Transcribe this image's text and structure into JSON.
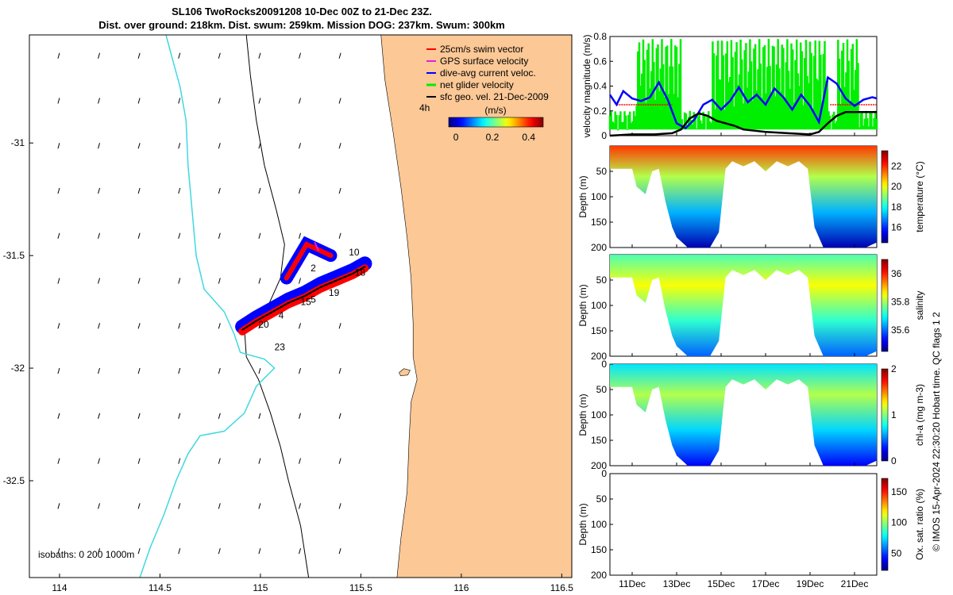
{
  "title": {
    "line1": "SL106 TwoRocks20091208 10-Dec 00Z to 21-Dec 23Z.",
    "line2": "Dist. over ground: 218km. Dist. swum: 259km. Mission DOG: 237km. Swum: 300km"
  },
  "colors": {
    "land": "#fbc896",
    "coast": "#000000",
    "isobath_200": "#000000",
    "isobath_1000": "#40d8e0",
    "swim": "#ff0000",
    "gps": "#e020e0",
    "current": "#0000ff",
    "net": "#00ee00",
    "geo": "#000000"
  },
  "chart_data": [
    {
      "type": "map",
      "xlim": [
        113.85,
        116.55
      ],
      "ylim": [
        -32.93,
        -30.52
      ],
      "xticks": [
        {
          "value": 114,
          "label": "114"
        },
        {
          "value": 114.5,
          "label": "114.5"
        },
        {
          "value": 115,
          "label": "115"
        },
        {
          "value": 115.5,
          "label": "115.5"
        },
        {
          "value": 116,
          "label": "116"
        },
        {
          "value": 116.5,
          "label": "116.5"
        }
      ],
      "yticks": [
        {
          "value": -31,
          "label": "-31"
        },
        {
          "value": -31.5,
          "label": "-31.5"
        },
        {
          "value": -32,
          "label": "-32"
        },
        {
          "value": -32.5,
          "label": "-32.5"
        }
      ],
      "legend": {
        "placement": "top-right",
        "entries": [
          "25cm/s swim vector",
          "GPS surface velocity",
          "dive-avg current veloc.",
          "net glider velocity",
          "sfc geo. vel. 21-Dec-2009"
        ],
        "time_label": "4h",
        "colorbar_label": "(m/s)",
        "colorbar_ticks": [
          "0",
          "0.2",
          "0.4"
        ],
        "colorbar_range": [
          -0.04,
          0.48
        ]
      },
      "isobath_label": "isobaths: 0   200  1000m",
      "track_day_labels": [
        {
          "text": "10",
          "lon": 115.44,
          "lat": -31.5
        },
        {
          "text": "2",
          "lon": 115.25,
          "lat": -31.57
        },
        {
          "text": "18",
          "lon": 115.47,
          "lat": -31.59
        },
        {
          "text": "19",
          "lon": 115.34,
          "lat": -31.68
        },
        {
          "text": "15",
          "lon": 115.2,
          "lat": -31.72
        },
        {
          "text": "5",
          "lon": 115.25,
          "lat": -31.71
        },
        {
          "text": "4",
          "lon": 115.09,
          "lat": -31.78
        },
        {
          "text": "20",
          "lon": 114.99,
          "lat": -31.82
        },
        {
          "text": "23",
          "lon": 115.07,
          "lat": -31.92
        }
      ],
      "track": [
        [
          114.91,
          -31.83
        ],
        [
          114.98,
          -31.79
        ],
        [
          115.06,
          -31.75
        ],
        [
          115.14,
          -31.71
        ],
        [
          115.22,
          -31.68
        ],
        [
          115.3,
          -31.64
        ],
        [
          115.38,
          -31.61
        ],
        [
          115.46,
          -31.58
        ],
        [
          115.52,
          -31.55
        ]
      ]
    },
    {
      "type": "line",
      "ylabel": "velocity magnitude (m/s)",
      "ylim": [
        0,
        0.8
      ],
      "yticks": [
        0,
        0.2,
        0.4,
        0.6,
        0.8
      ],
      "xlim": [
        10.0,
        22.0
      ],
      "series": [
        {
          "values_x": [
            10.0,
            10.3,
            10.6,
            11.0,
            11.4,
            11.8,
            12.2,
            12.6,
            13.0,
            13.4,
            13.8,
            14.2,
            14.6,
            15.0,
            15.4,
            15.8,
            16.2,
            16.6,
            17.0,
            17.4,
            17.8,
            18.2,
            18.6,
            19.0,
            19.4,
            19.8,
            20.2,
            20.6,
            21.0,
            21.4,
            21.8,
            22.0
          ],
          "values_y": [
            0.33,
            0.25,
            0.36,
            0.3,
            0.28,
            0.31,
            0.43,
            0.29,
            0.1,
            0.06,
            0.13,
            0.25,
            0.29,
            0.21,
            0.28,
            0.39,
            0.27,
            0.33,
            0.25,
            0.38,
            0.31,
            0.21,
            0.33,
            0.24,
            0.11,
            0.47,
            0.42,
            0.3,
            0.24,
            0.29,
            0.31,
            0.3
          ]
        },
        {
          "values_x": [
            10.0,
            11.0,
            12.0,
            12.8,
            13.2,
            13.6,
            14.0,
            14.4,
            14.8,
            15.2,
            15.6,
            16.0,
            17.0,
            18.0,
            19.0,
            19.4,
            19.8,
            20.2,
            20.6,
            21.0,
            21.5,
            22.0
          ],
          "values_y": [
            0.0,
            0.01,
            0.01,
            0.02,
            0.05,
            0.14,
            0.18,
            0.16,
            0.12,
            0.1,
            0.08,
            0.05,
            0.03,
            0.02,
            0.01,
            0.03,
            0.1,
            0.16,
            0.19,
            0.19,
            0.19,
            0.19
          ]
        }
      ],
      "ref_levels": [
        {
          "y": 0.25,
          "x_range": [
            10.3,
            12.8
          ]
        },
        {
          "y": 0.25,
          "x_range": [
            19.9,
            22.0
          ]
        }
      ]
    },
    {
      "type": "heatmap",
      "ylabel": "Depth (m)",
      "colorbar_label": "temperature (°C)",
      "ylim": [
        0,
        200
      ],
      "yticks": [
        50,
        100,
        150,
        200
      ],
      "colorbar_range": [
        14.5,
        23.5
      ],
      "colorbar_ticks": [
        16,
        18,
        20,
        22
      ]
    },
    {
      "type": "heatmap",
      "ylabel": "Depth (m)",
      "colorbar_label": "salinity",
      "ylim": [
        0,
        200
      ],
      "yticks": [
        50,
        100,
        150,
        200
      ],
      "colorbar_range": [
        35.45,
        36.1
      ],
      "colorbar_ticks": [
        35.6,
        35.8,
        36
      ]
    },
    {
      "type": "heatmap",
      "ylabel": "Depth (m)",
      "colorbar_label": "chl-a (mg m-3)",
      "ylim": [
        0,
        200
      ],
      "yticks": [
        0,
        50,
        100,
        150,
        200
      ],
      "colorbar_range": [
        0,
        2
      ],
      "colorbar_ticks": [
        0,
        1,
        2
      ]
    },
    {
      "type": "heatmap",
      "ylabel": "Depth (m)",
      "colorbar_label": "Ox. sat. ratio (%)",
      "ylim": [
        0,
        200
      ],
      "yticks": [
        0,
        50,
        100,
        150,
        200
      ],
      "colorbar_range": [
        22,
        172
      ],
      "colorbar_ticks": [
        50,
        100,
        150
      ],
      "xticks": [
        {
          "value": 11,
          "label": "11Dec"
        },
        {
          "value": 13,
          "label": "13Dec"
        },
        {
          "value": 15,
          "label": "15Dec"
        },
        {
          "value": 17,
          "label": "17Dec"
        },
        {
          "value": 19,
          "label": "19Dec"
        },
        {
          "value": 21,
          "label": "21Dec"
        }
      ],
      "xlim": [
        10.0,
        22.0
      ]
    }
  ],
  "section_profile": {
    "x": [
      10.0,
      10.5,
      11.0,
      11.2,
      11.6,
      11.9,
      12.2,
      12.5,
      12.8,
      13.0,
      13.5,
      14.0,
      14.5,
      14.9,
      15.2,
      15.5,
      16.0,
      16.5,
      17.0,
      17.5,
      18.0,
      18.5,
      18.9,
      19.2,
      19.6,
      20.0,
      20.5,
      21.0,
      21.5,
      22.0
    ],
    "depth": [
      45,
      45,
      45,
      80,
      95,
      50,
      45,
      110,
      160,
      180,
      200,
      200,
      200,
      170,
      45,
      30,
      40,
      30,
      50,
      30,
      40,
      30,
      45,
      160,
      200,
      200,
      200,
      200,
      200,
      190
    ]
  },
  "credit": "© IMOS 15-Apr-2024 22:30:20 Hobart time. QC flags 1  2"
}
